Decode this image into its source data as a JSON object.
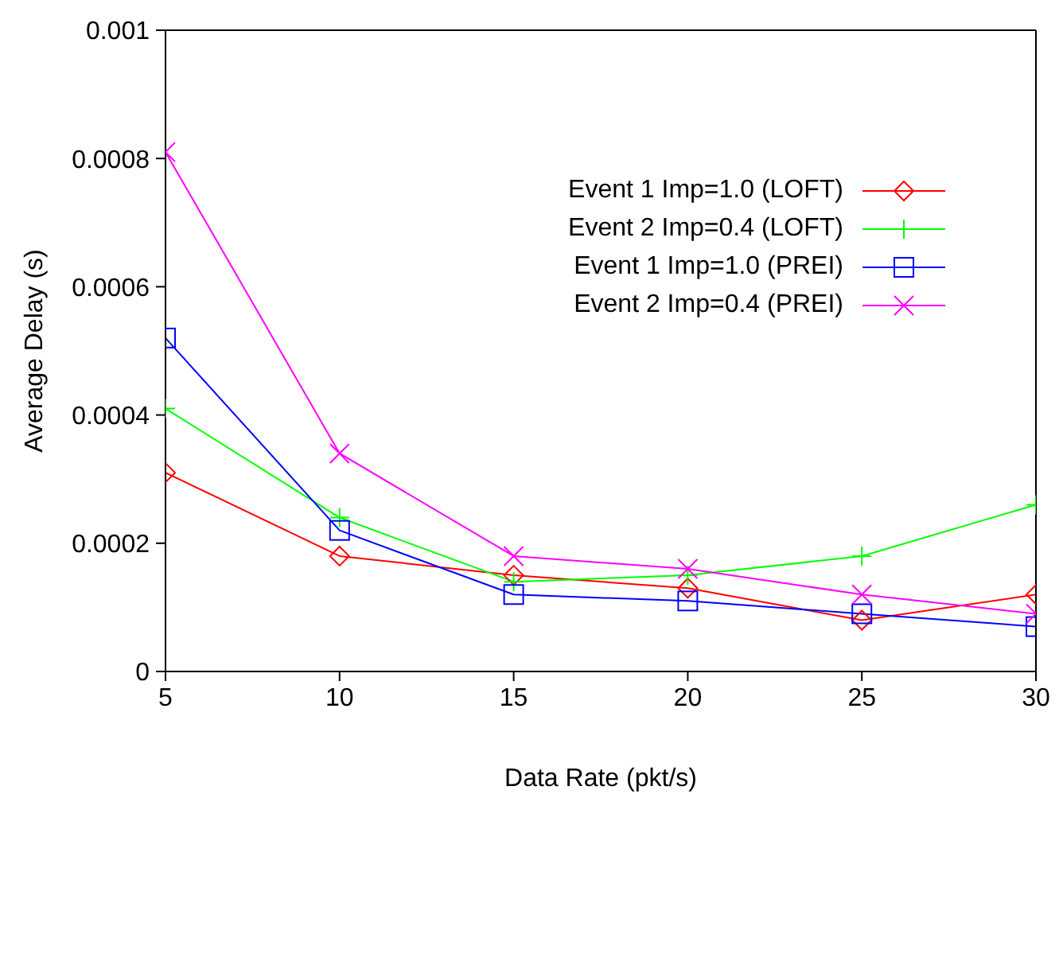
{
  "chart_data": {
    "type": "line",
    "xlabel": "Data Rate (pkt/s)",
    "ylabel": "Average Delay (s)",
    "x": [
      5,
      10,
      15,
      20,
      25,
      30
    ],
    "xlim": [
      5,
      30
    ],
    "xticks": [
      5,
      10,
      15,
      20,
      25,
      30
    ],
    "ylim": [
      0,
      0.001
    ],
    "yticks": [
      0,
      0.0002,
      0.0004,
      0.0006,
      0.0008,
      0.001
    ],
    "grid": false,
    "legend": "top right",
    "series": [
      {
        "name": "Event 1 Imp=1.0 (LOFT)",
        "color": "#ff0000",
        "marker": "diamond",
        "values": [
          0.00031,
          0.00018,
          0.00015,
          0.00013,
          8e-05,
          0.00012
        ]
      },
      {
        "name": "Event 2 Imp=0.4 (LOFT)",
        "color": "#00ff00",
        "marker": "plus",
        "values": [
          0.00041,
          0.00024,
          0.00014,
          0.00015,
          0.00018,
          0.00026
        ]
      },
      {
        "name": "Event 1 Imp=1.0 (PREI)",
        "color": "#0000ff",
        "marker": "square",
        "values": [
          0.00052,
          0.00022,
          0.00012,
          0.00011,
          9e-05,
          7e-05
        ]
      },
      {
        "name": "Event 2 Imp=0.4 (PREI)",
        "color": "#ff00ff",
        "marker": "cross",
        "values": [
          0.00081,
          0.00034,
          0.00018,
          0.00016,
          0.00012,
          9e-05
        ]
      }
    ]
  }
}
